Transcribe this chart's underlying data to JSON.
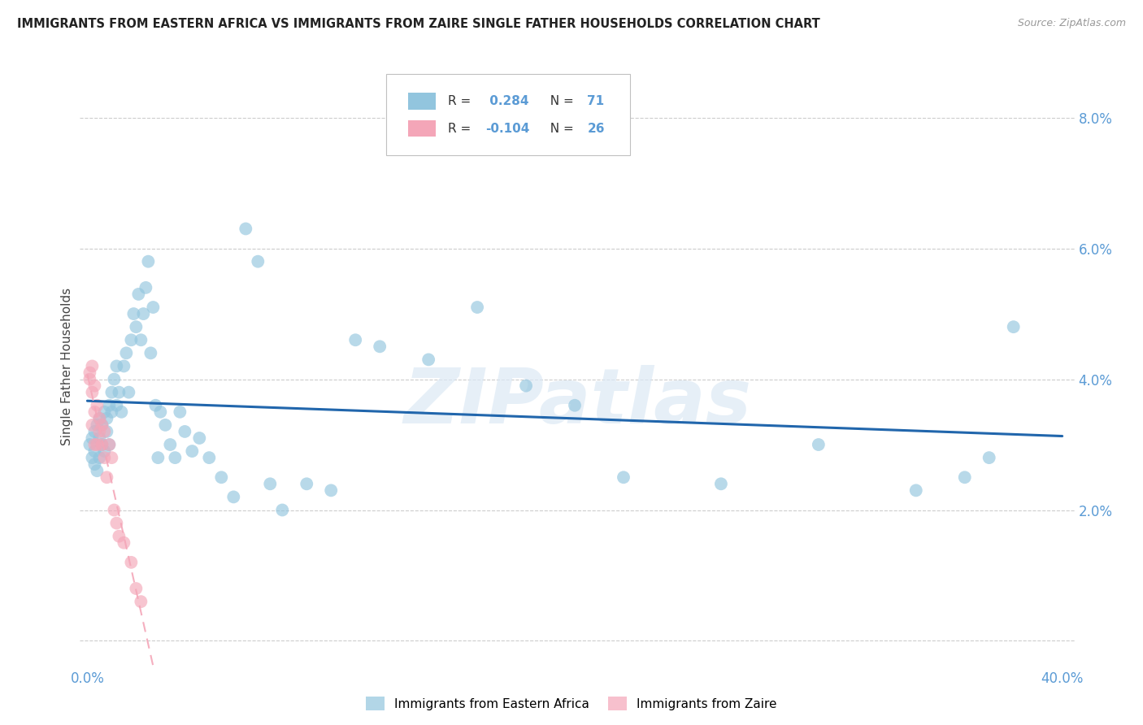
{
  "title": "IMMIGRANTS FROM EASTERN AFRICA VS IMMIGRANTS FROM ZAIRE SINGLE FATHER HOUSEHOLDS CORRELATION CHART",
  "source": "Source: ZipAtlas.com",
  "ylabel": "Single Father Households",
  "background_color": "#ffffff",
  "grid_color": "#cccccc",
  "watermark_text": "ZIPatlas",
  "legend_r1_label": "R = ",
  "legend_r1_val": " 0.284",
  "legend_n1_label": "N = ",
  "legend_n1_val": "71",
  "legend_r2_label": "R = ",
  "legend_r2_val": "-0.104",
  "legend_n2_label": "N = ",
  "legend_n2_val": "26",
  "blue_color": "#92c5de",
  "pink_color": "#f4a6b8",
  "blue_line_color": "#2166ac",
  "pink_line_color": "#f4a6b8",
  "label1": "Immigrants from Eastern Africa",
  "label2": "Immigrants from Zaire",
  "r_blue": 0.284,
  "r_pink": -0.104,
  "n_blue": 71,
  "n_pink": 26,
  "xlim": [
    0.0,
    0.4
  ],
  "ylim": [
    0.0,
    0.085
  ],
  "blue_x": [
    0.001,
    0.002,
    0.002,
    0.003,
    0.003,
    0.003,
    0.004,
    0.004,
    0.005,
    0.005,
    0.005,
    0.006,
    0.006,
    0.007,
    0.007,
    0.008,
    0.008,
    0.009,
    0.009,
    0.01,
    0.01,
    0.011,
    0.012,
    0.012,
    0.013,
    0.014,
    0.015,
    0.016,
    0.017,
    0.018,
    0.019,
    0.02,
    0.021,
    0.022,
    0.023,
    0.024,
    0.025,
    0.026,
    0.027,
    0.028,
    0.029,
    0.03,
    0.032,
    0.034,
    0.036,
    0.038,
    0.04,
    0.043,
    0.046,
    0.05,
    0.055,
    0.06,
    0.065,
    0.07,
    0.075,
    0.08,
    0.09,
    0.1,
    0.11,
    0.12,
    0.14,
    0.16,
    0.18,
    0.2,
    0.22,
    0.26,
    0.3,
    0.34,
    0.36,
    0.37,
    0.38
  ],
  "blue_y": [
    0.03,
    0.028,
    0.031,
    0.027,
    0.032,
    0.029,
    0.033,
    0.026,
    0.031,
    0.034,
    0.028,
    0.033,
    0.03,
    0.035,
    0.029,
    0.034,
    0.032,
    0.036,
    0.03,
    0.035,
    0.038,
    0.04,
    0.042,
    0.036,
    0.038,
    0.035,
    0.042,
    0.044,
    0.038,
    0.046,
    0.05,
    0.048,
    0.053,
    0.046,
    0.05,
    0.054,
    0.058,
    0.044,
    0.051,
    0.036,
    0.028,
    0.035,
    0.033,
    0.03,
    0.028,
    0.035,
    0.032,
    0.029,
    0.031,
    0.028,
    0.025,
    0.022,
    0.063,
    0.058,
    0.024,
    0.02,
    0.024,
    0.023,
    0.046,
    0.045,
    0.043,
    0.051,
    0.039,
    0.036,
    0.025,
    0.024,
    0.03,
    0.023,
    0.025,
    0.028,
    0.048
  ],
  "pink_x": [
    0.001,
    0.001,
    0.002,
    0.002,
    0.002,
    0.003,
    0.003,
    0.003,
    0.004,
    0.004,
    0.005,
    0.005,
    0.006,
    0.006,
    0.007,
    0.007,
    0.008,
    0.009,
    0.01,
    0.011,
    0.012,
    0.013,
    0.015,
    0.018,
    0.02,
    0.022
  ],
  "pink_y": [
    0.04,
    0.041,
    0.038,
    0.042,
    0.033,
    0.035,
    0.039,
    0.03,
    0.036,
    0.03,
    0.032,
    0.034,
    0.03,
    0.033,
    0.028,
    0.032,
    0.025,
    0.03,
    0.028,
    0.02,
    0.018,
    0.016,
    0.015,
    0.012,
    0.008,
    0.006
  ]
}
